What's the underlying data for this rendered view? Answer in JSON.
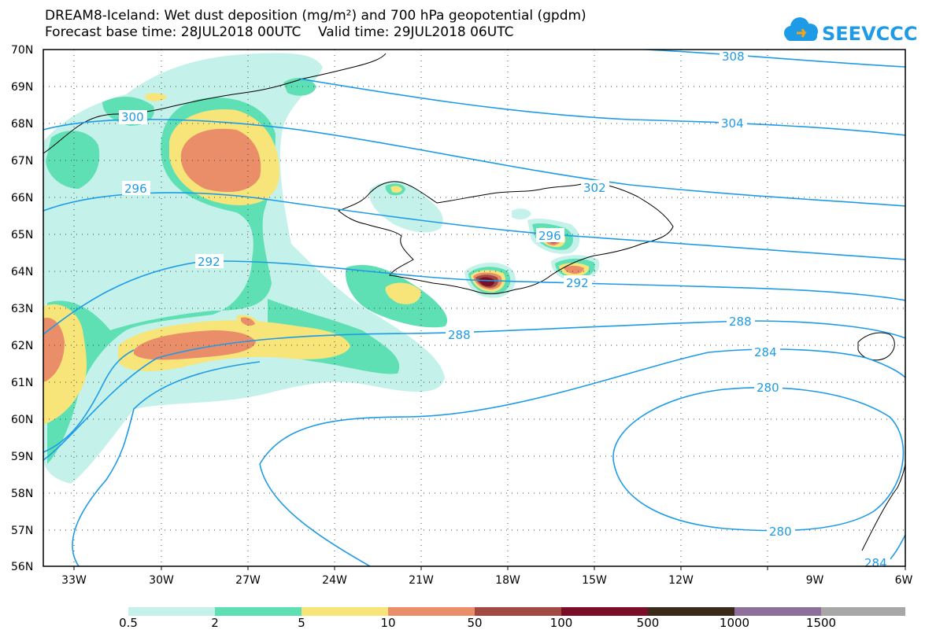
{
  "header": {
    "title_line1": "DREAM8-Iceland: Wet dust deposition (mg/m²) and 700 hPa geopotential (gpdm)",
    "title_line2": "Forecast base time: 28JUL2018 00UTC    Valid time: 29JUL2018 06UTC"
  },
  "logo": {
    "text": "SEEVCCC",
    "icon": "cloud-icon",
    "color": "#1e9be6"
  },
  "axes": {
    "lat_labels": [
      "70N",
      "69N",
      "68N",
      "67N",
      "66N",
      "65N",
      "64N",
      "63N",
      "62N",
      "61N",
      "60N",
      "59N",
      "58N",
      "57N",
      "56N"
    ],
    "lon_labels": [
      "33W",
      "30W",
      "27W",
      "24W",
      "21W",
      "18W",
      "15W",
      "12W",
      "9W",
      "6W"
    ]
  },
  "contours": {
    "color": "#1e9be6",
    "labels": [
      "308",
      "304",
      "300",
      "302",
      "296",
      "296",
      "292",
      "292",
      "288",
      "288",
      "284",
      "280",
      "280",
      "284"
    ]
  },
  "legend": {
    "labels": [
      "0.5",
      "2",
      "5",
      "10",
      "50",
      "100",
      "500",
      "1000",
      "1500"
    ],
    "colors": [
      "#c4f2ea",
      "#5ee0b4",
      "#f7e57a",
      "#ea8e6a",
      "#a24a42",
      "#7a0d28",
      "#3b2a18",
      "#8e6f9a",
      "#a7a7a7"
    ]
  }
}
